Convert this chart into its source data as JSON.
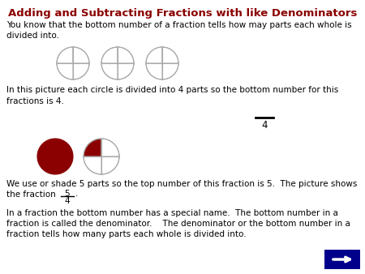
{
  "title": "Adding and Subtracting Fractions with like Denominators",
  "title_color": "#8B0000",
  "title_fontsize": 9.5,
  "bg_color": "#FFFFFF",
  "text_color": "#000000",
  "text_fontsize": 7.5,
  "circle_edge_color": "#AAAAAA",
  "circle_fill_color": "#8B0000",
  "arrow_bg": "#00008B",
  "line1": "You know that the bottom number of a fraction tells how may parts each whole is\ndivided into.",
  "line2a": "In this picture each circle is divided into 4 parts so the bottom number for this",
  "line2b": "fractions is 4.",
  "line3a": "We use or shade 5 parts so the top number of this fraction is 5.  The picture shows",
  "line3b": "the fraction",
  "line5": "In a fraction the bottom number has a special name.  The bottom number in a\nfraction is called the denominator.    The denominator or the bottom number in a\nfraction tells how many parts each whole is divided into."
}
